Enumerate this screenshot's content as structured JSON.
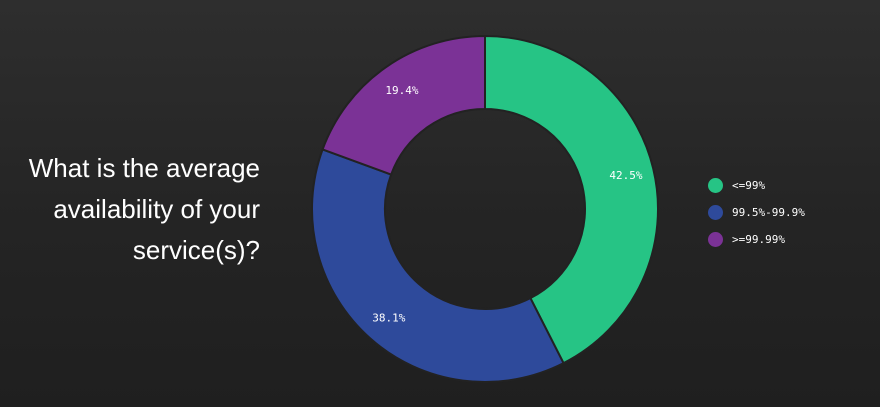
{
  "question": {
    "line1": "What is the average",
    "line2": "availability of your",
    "line3": "service(s)?"
  },
  "chart_data": {
    "type": "pie",
    "variant": "donut",
    "title": "What is the average availability of your service(s)?",
    "legend_position": "right",
    "series": [
      {
        "name": "<=99%",
        "value": 42.5,
        "label": "42.5%",
        "color": "#26c485"
      },
      {
        "name": "99.5%-99.9%",
        "value": 38.1,
        "label": "38.1%",
        "color": "#2e4a9b"
      },
      {
        "name": ">=99.99%",
        "value": 19.4,
        "label": "19.4%",
        "color": "#7b3296"
      }
    ]
  }
}
